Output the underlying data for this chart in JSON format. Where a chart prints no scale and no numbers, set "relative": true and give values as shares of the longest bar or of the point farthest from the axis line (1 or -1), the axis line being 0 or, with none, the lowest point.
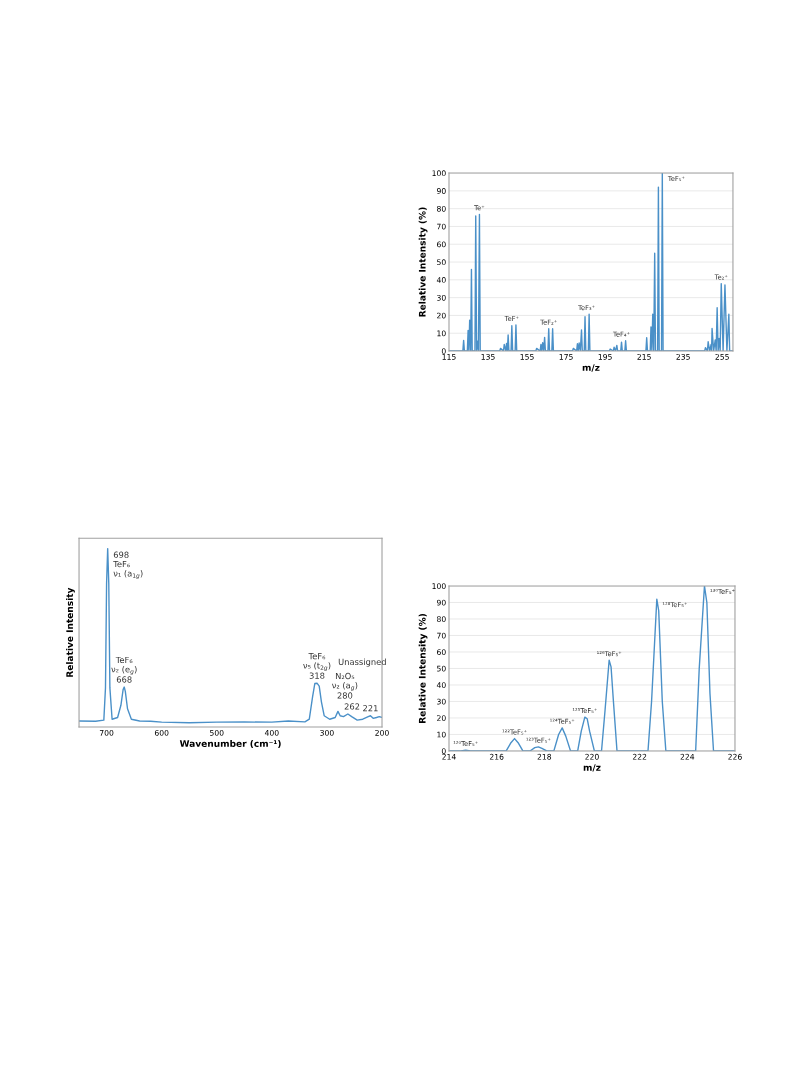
{
  "chart_data": [
    {
      "type": "line",
      "xlabel": "m/z",
      "ylabel": "Relative Intensity (%)",
      "xlim": [
        115,
        260.5
      ],
      "xticks": [
        115,
        135,
        155,
        175,
        195,
        215,
        235,
        255
      ],
      "ylim": [
        0,
        100
      ],
      "yticks": [
        0,
        10,
        20,
        30,
        40,
        50,
        60,
        70,
        80,
        90,
        100
      ],
      "grid": "y",
      "series": [
        {
          "color": "#4a90c8",
          "x": [
            115,
            122.1,
            122.5,
            122.9,
            124.4,
            124.8,
            125.2,
            125.6,
            126.1,
            126.5,
            126.9,
            128.3,
            128.7,
            129.15,
            129.6,
            130.1,
            130.6,
            131.0,
            141.0,
            141.4,
            142.9,
            143.3,
            144.1,
            144.5,
            144.9,
            145.3,
            145.7,
            146.8,
            147.2,
            147.6,
            148.9,
            149.3,
            149.7,
            159.5,
            159.9,
            161.7,
            162.1,
            162.55,
            163.0,
            163.5,
            164.0,
            164.4,
            165.7,
            166.1,
            166.5,
            167.7,
            168.1,
            168.5,
            178.3,
            178.7,
            180.4,
            180.8,
            181.25,
            181.7,
            182.3,
            182.9,
            183.3,
            184.3,
            184.7,
            185.1,
            186.4,
            186.8,
            187.2,
            197.2,
            197.6,
            199.2,
            199.6,
            200.3,
            201.0,
            201.4,
            203.0,
            203.4,
            203.8,
            205.1,
            205.5,
            205.9,
            215.9,
            216.3,
            216.7,
            218.1,
            218.5,
            218.95,
            219.4,
            219.9,
            220.4,
            220.8,
            221.9,
            222.3,
            222.7,
            223.9,
            224.3,
            224.7,
            246.0,
            246.4,
            247.4,
            247.8,
            248.55,
            249.3,
            249.55,
            249.8,
            250.6,
            251.4,
            251.9,
            252.4,
            252.9,
            253.4,
            253.95,
            254.5,
            255.45,
            256.4,
            257.4,
            258.4,
            258.8,
            260.5
          ],
          "values": [
            0,
            0,
            6,
            0,
            0,
            11.6,
            0,
            17.4,
            0,
            45.8,
            0,
            0,
            75.9,
            0,
            5.6,
            0,
            76.8,
            0,
            0,
            1.5,
            0,
            3.7,
            0,
            4.3,
            0,
            9,
            0,
            0,
            14.2,
            0,
            0,
            14.6,
            0,
            0,
            1.5,
            0,
            3.7,
            0,
            4.7,
            0,
            7.7,
            0,
            0,
            12.5,
            0,
            0,
            12.5,
            0,
            0,
            1.5,
            0,
            4.1,
            0,
            4.5,
            0,
            11.8,
            0,
            0,
            19.3,
            0,
            0,
            20.7,
            0,
            0,
            1.1,
            0,
            2.2,
            0,
            3.2,
            0,
            0,
            5,
            0,
            0,
            5.8,
            0,
            0,
            7.5,
            0,
            0,
            13.6,
            0,
            20.7,
            0,
            55,
            0,
            0,
            92.1,
            0,
            0,
            100,
            0,
            0,
            1.9,
            0,
            5.2,
            0,
            3.7,
            0,
            12.7,
            0,
            6.2,
            0,
            24.3,
            0,
            7.1,
            0,
            37.9,
            0,
            37.2,
            0,
            20.7,
            0,
            0
          ]
        }
      ],
      "annotations": [
        {
          "text": "Te⁺",
          "x": 130.6,
          "y": 76.8
        },
        {
          "text": "TeF⁺",
          "x": 147.2,
          "y": 14.6
        },
        {
          "text": "TeF₂⁺",
          "x": 166.1,
          "y": 12.5
        },
        {
          "text": "TeF₃⁺",
          "x": 185.5,
          "y": 20.7
        },
        {
          "text": "TeF₄⁺",
          "x": 203.4,
          "y": 5.8
        },
        {
          "text": "TeF₅⁺",
          "x": 224.3,
          "y": 100
        },
        {
          "text": "Te₂⁺",
          "x": 254.5,
          "y": 37.9
        }
      ]
    },
    {
      "type": "line",
      "xlabel": "Wavenumber (cm⁻¹)",
      "ylabel": "Relative Intensity",
      "xlim": [
        750,
        200
      ],
      "xticks": [
        700,
        600,
        500,
        400,
        300,
        200
      ],
      "relative": true,
      "series": [
        {
          "color": "#4a90c8",
          "x": [
            750,
            720,
            705,
            702,
            700,
            698,
            696,
            694,
            690,
            680,
            674,
            670,
            668,
            666,
            662,
            655,
            640,
            620,
            600,
            550,
            500,
            450,
            400,
            370,
            340,
            332,
            326,
            322,
            318,
            314,
            310,
            305,
            295,
            285,
            280,
            276,
            270,
            262,
            255,
            245,
            235,
            225,
            221,
            216,
            210,
            205,
            200
          ],
          "values": [
            0.01,
            0.008,
            0.015,
            0.2,
            0.8,
            1.0,
            0.8,
            0.2,
            0.02,
            0.03,
            0.1,
            0.19,
            0.205,
            0.18,
            0.08,
            0.02,
            0.01,
            0.008,
            0.003,
            0.0,
            0.003,
            0.004,
            0.003,
            0.01,
            0.005,
            0.02,
            0.15,
            0.225,
            0.227,
            0.21,
            0.12,
            0.04,
            0.02,
            0.03,
            0.065,
            0.04,
            0.035,
            0.05,
            0.035,
            0.015,
            0.02,
            0.035,
            0.04,
            0.025,
            0.03,
            0.035,
            0.03
          ]
        }
      ],
      "annotations": [
        {
          "text": "698\nTeF₆\nν₁ (a$_{1g}$)",
          "x": 698,
          "y": 1.0
        },
        {
          "text": "TeF₆\nν₂ (e$_{g}$)\n668",
          "x": 668,
          "y": 0.205
        },
        {
          "text": "TeF₆\nν₅ (t$_{2g}$)\n318",
          "x": 318,
          "y": 0.227
        },
        {
          "text": "N₂O₅\nν₂ (a$_{g}$)\n280",
          "x": 280,
          "y": 0.065
        },
        {
          "text": "262",
          "x": 262,
          "y": 0.05
        },
        {
          "text": "221",
          "x": 221,
          "y": 0.04
        },
        "Unassigned"
      ]
    },
    {
      "type": "line",
      "xlabel": "m/z",
      "ylabel": "Relative Intensity (%)",
      "xlim": [
        214,
        226
      ],
      "xticks": [
        214,
        216,
        218,
        220,
        222,
        224,
        226
      ],
      "ylim": [
        0,
        100
      ],
      "yticks": [
        0,
        10,
        20,
        30,
        40,
        50,
        60,
        70,
        80,
        90,
        100
      ],
      "grid": "y",
      "series": [
        {
          "color": "#4a90c8",
          "x": [
            214,
            214.5,
            214.7,
            214.9,
            216.4,
            216.6,
            216.75,
            216.9,
            217.1,
            217.4,
            217.6,
            217.75,
            217.9,
            218.1,
            218.4,
            218.6,
            218.75,
            218.9,
            219.1,
            219.4,
            219.55,
            219.7,
            219.8,
            219.9,
            220.1,
            220.4,
            220.55,
            220.72,
            220.8,
            220.9,
            221.05,
            222.35,
            222.5,
            222.72,
            222.8,
            222.95,
            223.1,
            224.35,
            224.5,
            224.72,
            224.82,
            224.95,
            225.1,
            226
          ],
          "values": [
            0,
            0,
            0.5,
            0,
            0,
            5,
            7.5,
            5,
            0,
            0,
            2,
            2.5,
            1.5,
            0,
            0,
            10,
            14,
            9,
            0,
            0,
            12,
            20.5,
            19.5,
            12,
            0,
            0,
            25,
            55,
            51,
            30,
            0,
            0,
            30,
            92,
            85,
            30,
            0,
            0,
            50,
            100,
            90,
            35,
            0,
            0
          ]
        }
      ],
      "annotations": [
        {
          "text": "¹²⁰TeF₅⁺",
          "x": 214.7,
          "y": 0.5
        },
        {
          "text": "¹²²TeF₅⁺",
          "x": 216.75,
          "y": 7.5
        },
        {
          "text": "¹²³TeF₅⁺",
          "x": 217.75,
          "y": 2.5
        },
        {
          "text": "¹²⁴TeF₅⁺",
          "x": 218.75,
          "y": 14
        },
        {
          "text": "¹²⁵TeF₅⁺",
          "x": 219.7,
          "y": 20.5
        },
        {
          "text": "¹²⁶TeF₅⁺",
          "x": 220.72,
          "y": 55
        },
        {
          "text": "¹²⁸TeF₅⁺",
          "x": 222.72,
          "y": 92
        },
        {
          "text": "¹³⁰TeF₅⁺",
          "x": 224.72,
          "y": 100
        }
      ]
    }
  ]
}
